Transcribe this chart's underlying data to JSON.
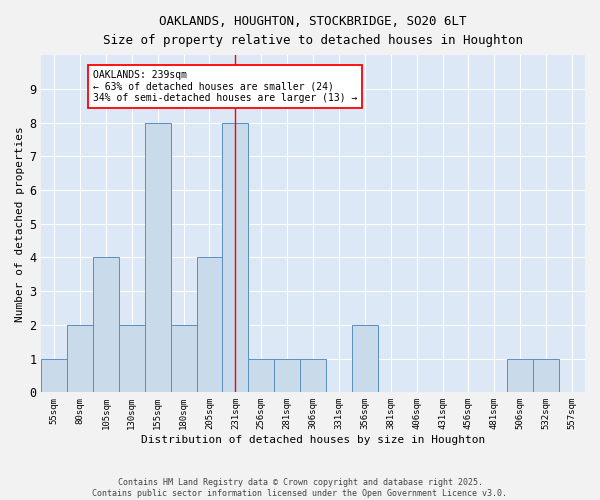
{
  "title": "OAKLANDS, HOUGHTON, STOCKBRIDGE, SO20 6LT",
  "subtitle": "Size of property relative to detached houses in Houghton",
  "xlabel": "Distribution of detached houses by size in Houghton",
  "ylabel": "Number of detached properties",
  "categories": [
    "55sqm",
    "80sqm",
    "105sqm",
    "130sqm",
    "155sqm",
    "180sqm",
    "205sqm",
    "231sqm",
    "256sqm",
    "281sqm",
    "306sqm",
    "331sqm",
    "356sqm",
    "381sqm",
    "406sqm",
    "431sqm",
    "456sqm",
    "481sqm",
    "506sqm",
    "532sqm",
    "557sqm"
  ],
  "values": [
    1,
    2,
    4,
    2,
    8,
    2,
    4,
    8,
    1,
    1,
    1,
    0,
    2,
    0,
    0,
    0,
    0,
    0,
    1,
    1,
    0
  ],
  "bar_color": "#c9daea",
  "bar_edge_color": "#5a8fc0",
  "red_line_index": 7,
  "annotation_title": "OAKLANDS: 239sqm",
  "annotation_line1": "← 63% of detached houses are smaller (24)",
  "annotation_line2": "34% of semi-detached houses are larger (13) →",
  "ylim": [
    0,
    10
  ],
  "yticks": [
    0,
    1,
    2,
    3,
    4,
    5,
    6,
    7,
    8,
    9,
    10
  ],
  "background_color": "#dce8f5",
  "plot_bg_color": "#dce8f5",
  "fig_bg_color": "#f2f2f2",
  "grid_color": "#ffffff",
  "footer_line1": "Contains HM Land Registry data © Crown copyright and database right 2025.",
  "footer_line2": "Contains public sector information licensed under the Open Government Licence v3.0."
}
